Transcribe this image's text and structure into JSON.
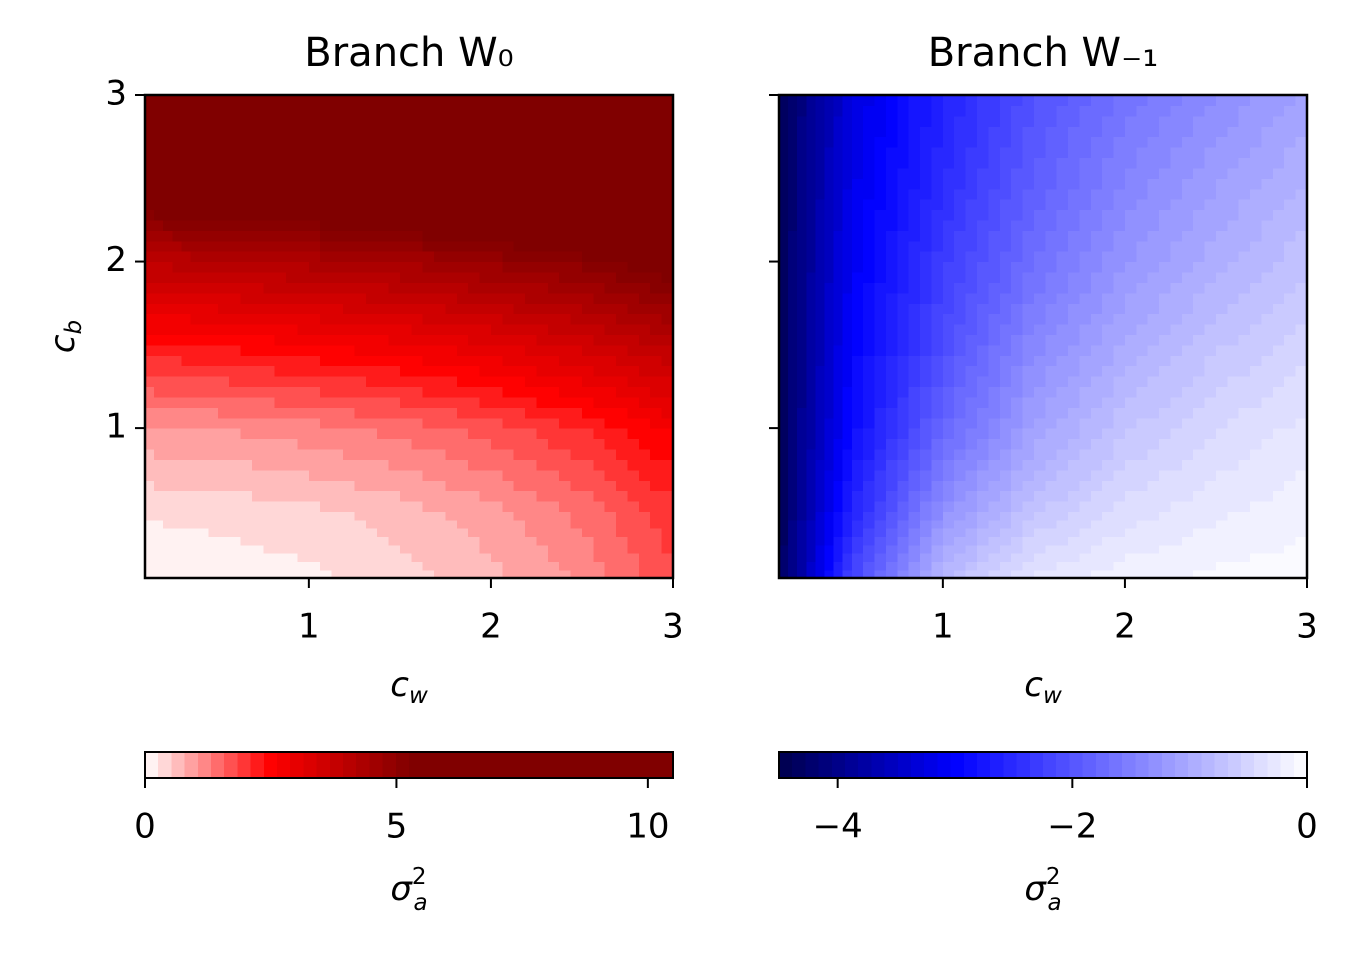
{
  "chart_data": [
    {
      "type": "contourf",
      "title": "Branch W₀",
      "xlabel": {
        "base": "c",
        "sub": "w"
      },
      "ylabel": {
        "base": "c",
        "sub": "b"
      },
      "x": [
        0.1,
        0.5,
        1,
        1.5,
        2,
        2.5,
        3
      ],
      "y": [
        0.1,
        0.5,
        1,
        1.5,
        2,
        2.5,
        3
      ],
      "z": [
        [
          0.05,
          0.1,
          0.2,
          0.4,
          0.7,
          1.1,
          1.8
        ],
        [
          0.3,
          0.35,
          0.45,
          0.65,
          0.95,
          1.4,
          2.0
        ],
        [
          1.0,
          1.05,
          1.2,
          1.4,
          1.7,
          2.1,
          2.7
        ],
        [
          2.3,
          2.4,
          2.6,
          2.8,
          3.1,
          3.5,
          4.0
        ],
        [
          4.0,
          4.1,
          4.3,
          4.5,
          4.8,
          5.1,
          5.6
        ],
        [
          6.2,
          6.3,
          6.4,
          6.6,
          6.9,
          7.2,
          7.6
        ],
        [
          8.8,
          8.9,
          9.0,
          9.2,
          9.5,
          9.8,
          10.4
        ]
      ],
      "xlim": [
        0.1,
        3
      ],
      "ylim": [
        0.1,
        3
      ],
      "xticks": [
        1,
        2,
        3
      ],
      "yticks": [
        1,
        2,
        3
      ],
      "show_ytick_labels": true,
      "colormap": [
        [
          0,
          "#ffffff"
        ],
        [
          2.5,
          "#ff0000"
        ],
        [
          5.3,
          "#800000"
        ],
        [
          10.5,
          "#800000"
        ]
      ],
      "n_levels": 40,
      "colorbar": {
        "lim": [
          0,
          10.5
        ],
        "ticks": [
          0,
          5,
          10
        ],
        "label": {
          "base": "σ",
          "sup": "2",
          "sub": "a"
        }
      }
    },
    {
      "type": "contourf",
      "title": "Branch W₋₁",
      "xlabel": {
        "base": "c",
        "sub": "w"
      },
      "x": [
        0.1,
        0.5,
        1,
        1.5,
        2,
        2.5,
        3
      ],
      "y": [
        0.1,
        0.5,
        1,
        1.5,
        2,
        2.5,
        3
      ],
      "z": [
        [
          -4.4,
          -2.2,
          -0.8,
          -0.3,
          -0.15,
          -0.08,
          -0.05
        ],
        [
          -4.4,
          -2.6,
          -1.3,
          -0.7,
          -0.4,
          -0.25,
          -0.15
        ],
        [
          -4.4,
          -2.9,
          -1.8,
          -1.1,
          -0.7,
          -0.45,
          -0.3
        ],
        [
          -4.4,
          -3.0,
          -2.1,
          -1.4,
          -1.0,
          -0.7,
          -0.5
        ],
        [
          -4.4,
          -3.1,
          -2.3,
          -1.7,
          -1.25,
          -0.95,
          -0.7
        ],
        [
          -4.4,
          -3.2,
          -2.5,
          -1.9,
          -1.45,
          -1.15,
          -0.9
        ],
        [
          -4.4,
          -3.3,
          -2.6,
          -2.05,
          -1.65,
          -1.35,
          -1.1
        ]
      ],
      "xlim": [
        0.1,
        3
      ],
      "ylim": [
        0.1,
        3
      ],
      "xticks": [
        1,
        2,
        3
      ],
      "yticks": [
        1,
        2,
        3
      ],
      "show_ytick_labels": false,
      "colormap": [
        [
          -4.5,
          "#00004c"
        ],
        [
          -3,
          "#0000ff"
        ],
        [
          0,
          "#ffffff"
        ]
      ],
      "n_levels": 40,
      "colorbar": {
        "lim": [
          -4.5,
          0
        ],
        "ticks": [
          {
            "value": -4,
            "label": "−4"
          },
          {
            "value": -2,
            "label": "−2"
          },
          0
        ],
        "label": {
          "base": "σ",
          "sup": "2",
          "sub": "a"
        }
      }
    }
  ]
}
